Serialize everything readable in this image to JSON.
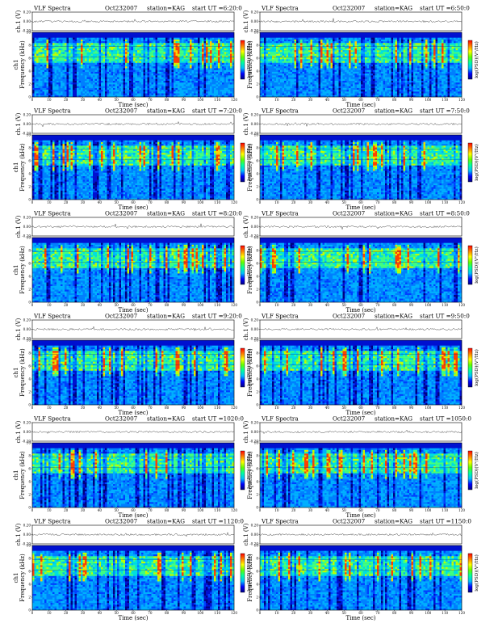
{
  "chart_data": {
    "type": "heatmap",
    "figure_title": "VLF Spectra",
    "date": "Oct232007",
    "station": "station=KAG",
    "start_label": "start UT",
    "xlabel": "Time (sec)",
    "ylabel_spectrogram": "Frequency (kHz)",
    "ylabel_waveform": "ch.1 (V)",
    "channel_label": "ch1",
    "colorbar_label": "log(PSD)(V²/Hz)",
    "colorbar_colors": [
      "#000080",
      "#0000ff",
      "#00c0ff",
      "#00ffa0",
      "#60ff00",
      "#ffff00",
      "#ff8000",
      "#ff0000"
    ],
    "xlim": [
      0,
      120
    ],
    "x_ticks": [
      "0",
      "10",
      "20",
      "30",
      "40",
      "50",
      "60",
      "70",
      "80",
      "90",
      "100",
      "110",
      "120"
    ],
    "ylim_khz": [
      0,
      10
    ],
    "y_ticks_khz": [
      "0",
      "2",
      "4",
      "6",
      "8",
      "10"
    ],
    "waveform_ylim": [
      -0.2,
      0.2
    ],
    "waveform_ticks": [
      "0.20",
      "0.00",
      "-0.20"
    ],
    "panels": [
      {
        "start_ut": "6:20:0"
      },
      {
        "start_ut": "6:50:0"
      },
      {
        "start_ut": "7:20:0"
      },
      {
        "start_ut": "7:50:0"
      },
      {
        "start_ut": "8:20:0"
      },
      {
        "start_ut": "8:50:0"
      },
      {
        "start_ut": "9:20:0"
      },
      {
        "start_ut": "9:50:0"
      },
      {
        "start_ut": "1020:0"
      },
      {
        "start_ut": "1050:0"
      },
      {
        "start_ut": "1120:0"
      },
      {
        "start_ut": "1150:0"
      }
    ]
  }
}
